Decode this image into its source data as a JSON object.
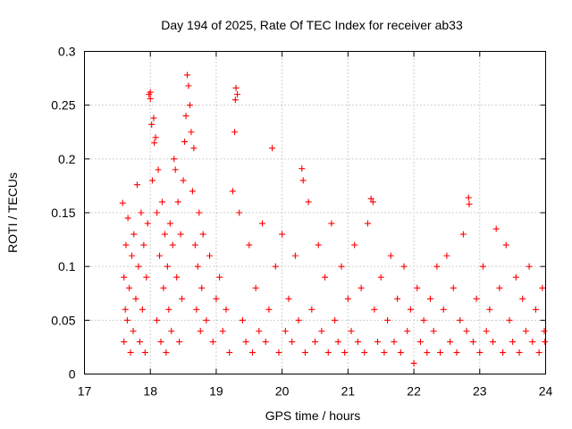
{
  "chart_data": {
    "type": "scatter",
    "title": "Day 194 of 2025, Rate Of TEC Index for receiver ab33",
    "xlabel": "GPS time / hours",
    "ylabel": "ROTI / TECUs",
    "xlim": [
      17,
      24
    ],
    "ylim": [
      0,
      0.3
    ],
    "xticks": [
      17,
      18,
      19,
      20,
      21,
      22,
      23,
      24
    ],
    "yticks": [
      0,
      0.05,
      0.1,
      0.15,
      0.2,
      0.25,
      0.3
    ],
    "xtick_labels": [
      "17",
      "18",
      "19",
      "20",
      "21",
      "22",
      "23",
      "24"
    ],
    "ytick_labels": [
      "0",
      "0.05",
      "0.1",
      "0.15",
      "0.2",
      "0.25",
      "0.3"
    ],
    "grid": true,
    "marker": "+",
    "color": "#ff0000",
    "series": [
      {
        "name": "ROTI",
        "points": [
          [
            17.58,
            0.159
          ],
          [
            17.6,
            0.09
          ],
          [
            17.6,
            0.03
          ],
          [
            17.62,
            0.06
          ],
          [
            17.63,
            0.12
          ],
          [
            17.65,
            0.05
          ],
          [
            17.66,
            0.145
          ],
          [
            17.68,
            0.08
          ],
          [
            17.7,
            0.02
          ],
          [
            17.72,
            0.11
          ],
          [
            17.74,
            0.04
          ],
          [
            17.75,
            0.13
          ],
          [
            17.78,
            0.07
          ],
          [
            17.8,
            0.176
          ],
          [
            17.82,
            0.1
          ],
          [
            17.84,
            0.03
          ],
          [
            17.86,
            0.15
          ],
          [
            17.88,
            0.06
          ],
          [
            17.9,
            0.12
          ],
          [
            17.92,
            0.02
          ],
          [
            17.94,
            0.09
          ],
          [
            17.96,
            0.14
          ],
          [
            17.98,
            0.26
          ],
          [
            18.0,
            0.262
          ],
          [
            18.0,
            0.256
          ],
          [
            18.02,
            0.232
          ],
          [
            18.03,
            0.18
          ],
          [
            18.05,
            0.238
          ],
          [
            18.06,
            0.215
          ],
          [
            18.08,
            0.22
          ],
          [
            18.1,
            0.15
          ],
          [
            18.1,
            0.05
          ],
          [
            18.12,
            0.19
          ],
          [
            18.14,
            0.11
          ],
          [
            18.16,
            0.03
          ],
          [
            18.18,
            0.16
          ],
          [
            18.2,
            0.08
          ],
          [
            18.22,
            0.13
          ],
          [
            18.24,
            0.02
          ],
          [
            18.26,
            0.1
          ],
          [
            18.28,
            0.06
          ],
          [
            18.3,
            0.14
          ],
          [
            18.32,
            0.04
          ],
          [
            18.34,
            0.12
          ],
          [
            18.36,
            0.2
          ],
          [
            18.38,
            0.19
          ],
          [
            18.4,
            0.09
          ],
          [
            18.42,
            0.16
          ],
          [
            18.44,
            0.03
          ],
          [
            18.46,
            0.13
          ],
          [
            18.48,
            0.07
          ],
          [
            18.5,
            0.18
          ],
          [
            18.52,
            0.216
          ],
          [
            18.54,
            0.24
          ],
          [
            18.56,
            0.278
          ],
          [
            18.58,
            0.268
          ],
          [
            18.6,
            0.25
          ],
          [
            18.62,
            0.225
          ],
          [
            18.64,
            0.17
          ],
          [
            18.66,
            0.21
          ],
          [
            18.68,
            0.12
          ],
          [
            18.7,
            0.06
          ],
          [
            18.72,
            0.1
          ],
          [
            18.74,
            0.15
          ],
          [
            18.76,
            0.04
          ],
          [
            18.78,
            0.08
          ],
          [
            18.8,
            0.13
          ],
          [
            18.85,
            0.05
          ],
          [
            18.9,
            0.11
          ],
          [
            18.95,
            0.03
          ],
          [
            19.0,
            0.07
          ],
          [
            19.05,
            0.09
          ],
          [
            19.1,
            0.04
          ],
          [
            19.15,
            0.06
          ],
          [
            19.2,
            0.02
          ],
          [
            19.25,
            0.17
          ],
          [
            19.28,
            0.225
          ],
          [
            19.29,
            0.255
          ],
          [
            19.3,
            0.266
          ],
          [
            19.32,
            0.26
          ],
          [
            19.35,
            0.15
          ],
          [
            19.4,
            0.05
          ],
          [
            19.45,
            0.03
          ],
          [
            19.5,
            0.12
          ],
          [
            19.55,
            0.02
          ],
          [
            19.6,
            0.08
          ],
          [
            19.65,
            0.04
          ],
          [
            19.7,
            0.14
          ],
          [
            19.75,
            0.03
          ],
          [
            19.8,
            0.06
          ],
          [
            19.85,
            0.21
          ],
          [
            19.9,
            0.1
          ],
          [
            19.95,
            0.02
          ],
          [
            20.0,
            0.13
          ],
          [
            20.05,
            0.04
          ],
          [
            20.1,
            0.07
          ],
          [
            20.15,
            0.03
          ],
          [
            20.2,
            0.11
          ],
          [
            20.25,
            0.05
          ],
          [
            20.3,
            0.191
          ],
          [
            20.32,
            0.18
          ],
          [
            20.35,
            0.02
          ],
          [
            20.4,
            0.16
          ],
          [
            20.45,
            0.06
          ],
          [
            20.5,
            0.03
          ],
          [
            20.55,
            0.12
          ],
          [
            20.6,
            0.04
          ],
          [
            20.65,
            0.09
          ],
          [
            20.7,
            0.02
          ],
          [
            20.75,
            0.14
          ],
          [
            20.8,
            0.05
          ],
          [
            20.85,
            0.03
          ],
          [
            20.9,
            0.1
          ],
          [
            20.95,
            0.02
          ],
          [
            21.0,
            0.07
          ],
          [
            21.05,
            0.04
          ],
          [
            21.1,
            0.12
          ],
          [
            21.15,
            0.03
          ],
          [
            21.2,
            0.08
          ],
          [
            21.25,
            0.02
          ],
          [
            21.3,
            0.14
          ],
          [
            21.35,
            0.163
          ],
          [
            21.38,
            0.16
          ],
          [
            21.4,
            0.06
          ],
          [
            21.45,
            0.03
          ],
          [
            21.5,
            0.09
          ],
          [
            21.55,
            0.02
          ],
          [
            21.6,
            0.05
          ],
          [
            21.65,
            0.11
          ],
          [
            21.7,
            0.03
          ],
          [
            21.75,
            0.07
          ],
          [
            21.8,
            0.02
          ],
          [
            21.85,
            0.1
          ],
          [
            21.9,
            0.04
          ],
          [
            21.95,
            0.06
          ],
          [
            22.0,
            0.01
          ],
          [
            22.05,
            0.08
          ],
          [
            22.1,
            0.03
          ],
          [
            22.15,
            0.05
          ],
          [
            22.2,
            0.02
          ],
          [
            22.25,
            0.07
          ],
          [
            22.3,
            0.04
          ],
          [
            22.35,
            0.1
          ],
          [
            22.4,
            0.02
          ],
          [
            22.45,
            0.06
          ],
          [
            22.5,
            0.11
          ],
          [
            22.55,
            0.03
          ],
          [
            22.6,
            0.08
          ],
          [
            22.65,
            0.02
          ],
          [
            22.7,
            0.05
          ],
          [
            22.75,
            0.13
          ],
          [
            22.8,
            0.04
          ],
          [
            22.83,
            0.164
          ],
          [
            22.84,
            0.158
          ],
          [
            22.9,
            0.03
          ],
          [
            22.95,
            0.07
          ],
          [
            23.0,
            0.02
          ],
          [
            23.05,
            0.1
          ],
          [
            23.1,
            0.04
          ],
          [
            23.15,
            0.06
          ],
          [
            23.2,
            0.03
          ],
          [
            23.25,
            0.135
          ],
          [
            23.3,
            0.08
          ],
          [
            23.35,
            0.02
          ],
          [
            23.4,
            0.12
          ],
          [
            23.45,
            0.05
          ],
          [
            23.5,
            0.03
          ],
          [
            23.55,
            0.09
          ],
          [
            23.6,
            0.02
          ],
          [
            23.65,
            0.07
          ],
          [
            23.7,
            0.04
          ],
          [
            23.75,
            0.1
          ],
          [
            23.8,
            0.03
          ],
          [
            23.85,
            0.06
          ],
          [
            23.9,
            0.02
          ],
          [
            23.95,
            0.08
          ],
          [
            23.98,
            0.04
          ],
          [
            23.99,
            0.03
          ]
        ]
      }
    ]
  }
}
